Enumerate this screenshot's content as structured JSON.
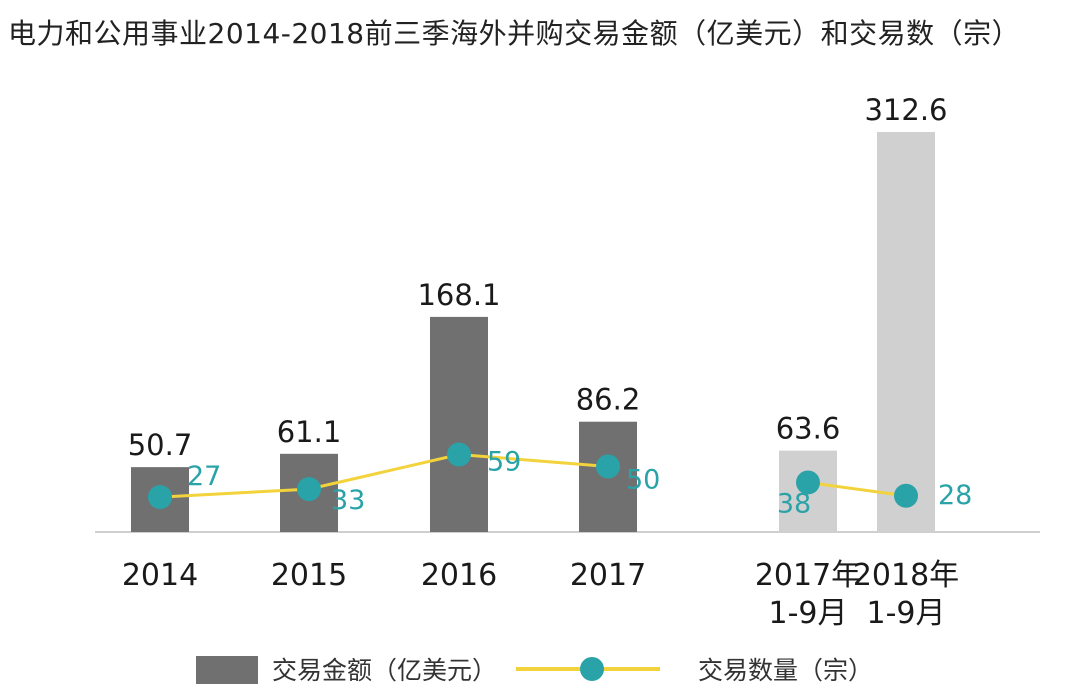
{
  "title": "电力和公用事业2014-2018前三季海外并购交易金额（亿美元）和交易数（宗）",
  "chart_data": {
    "type": "bar+line",
    "categories": [
      [
        "2014"
      ],
      [
        "2015"
      ],
      [
        "2016"
      ],
      [
        "2017"
      ],
      [
        "2017年",
        "1-9月"
      ],
      [
        "2018年",
        "1-9月"
      ]
    ],
    "series": [
      {
        "name": "交易金额（亿美元）",
        "type": "bar",
        "values": [
          50.7,
          61.1,
          168.1,
          86.2,
          63.6,
          312.6
        ],
        "labels": [
          "50.7",
          "61.1",
          "168.1",
          "86.2",
          "63.6",
          "312.6"
        ],
        "colors": [
          "#707070",
          "#707070",
          "#707070",
          "#707070",
          "#d0d0d0",
          "#d0d0d0"
        ]
      },
      {
        "name": "交易数量（宗）",
        "type": "line",
        "values": [
          27,
          33,
          59,
          50,
          38,
          28
        ],
        "labels": [
          "27",
          "33",
          "59",
          "50",
          "38",
          "28"
        ],
        "segments": [
          [
            0,
            1,
            2,
            3
          ],
          [
            4,
            5
          ]
        ],
        "line_color": "#f2d33b",
        "marker_color": "#2aa3a8"
      }
    ],
    "grid": false,
    "legend_position": "bottom"
  },
  "legend": {
    "amount_label": "交易金额（亿美元）",
    "count_label": "交易数量（宗）"
  }
}
